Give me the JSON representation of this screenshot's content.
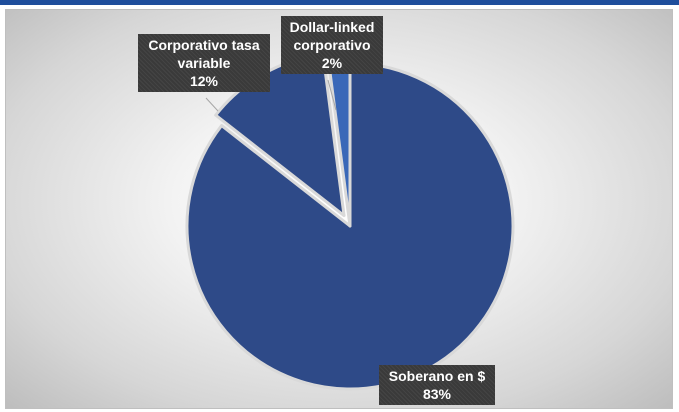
{
  "chart_data": {
    "type": "pie",
    "title": "",
    "slices": [
      {
        "name": "Soberano en $",
        "value": 83,
        "label_value": "83%",
        "color": "#2e4a88"
      },
      {
        "name": "Corporativo tasa variable",
        "value": 12,
        "label_value": "12%",
        "color": "#2e4a88"
      },
      {
        "name": "Dollar-linked corporativo",
        "value": 2,
        "label_value": "2%",
        "color": "#3a68b8"
      }
    ],
    "labels": [
      {
        "lines": [
          "Soberano en $"
        ],
        "value": "83%"
      },
      {
        "lines": [
          "Corporativo tasa",
          "variable"
        ],
        "value": "12%"
      },
      {
        "lines": [
          "Dollar-linked",
          "corporativo"
        ],
        "value": "2%"
      }
    ],
    "colors": {
      "slice": "#2e4a88",
      "slice_small": "#3a68b8",
      "separator": "#d9d9d9",
      "label_bg": "#3a3a3a",
      "accent_rule": "#1f4e9c"
    }
  }
}
